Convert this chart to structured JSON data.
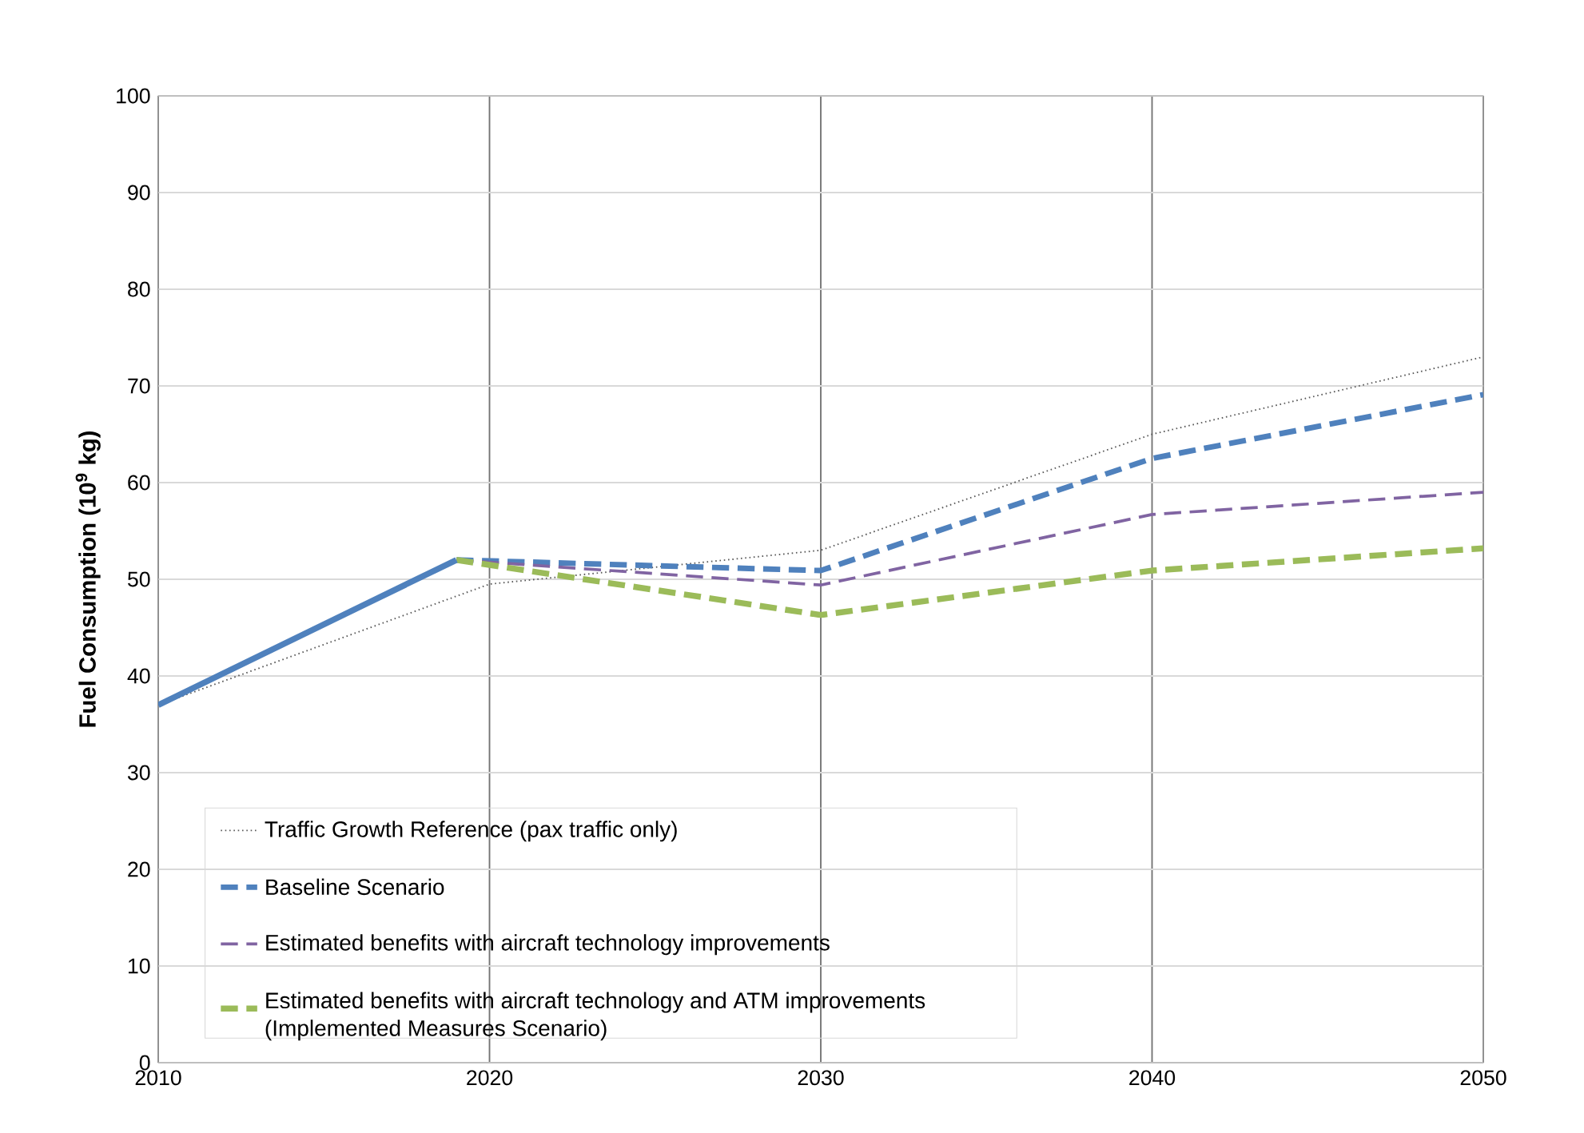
{
  "chart_data": {
    "type": "line",
    "ylabel": "Fuel Consumption (10$^{9}$ kg)",
    "xlim": [
      2010,
      2050
    ],
    "xticks": [
      2010,
      2020,
      2030,
      2040,
      2050
    ],
    "ylim": [
      0,
      100
    ],
    "yticks": [
      0,
      10,
      20,
      30,
      40,
      50,
      60,
      70,
      80,
      90,
      100
    ],
    "grid": true,
    "legend": "bottom left",
    "series": [
      {
        "name": "Traffic Growth Reference (pax traffic only)",
        "color": "#595959",
        "line_style": "dotted",
        "x": [
          2010,
          2020,
          2030,
          2040,
          2050
        ],
        "values": [
          37,
          49.5,
          53,
          65,
          73
        ]
      },
      {
        "name": "Baseline Scenario",
        "color": "#4f81bd",
        "line_style": "dashed",
        "x": [
          2019,
          2030,
          2040,
          2050
        ],
        "values": [
          52,
          50.9,
          62.5,
          69.1
        ]
      },
      {
        "name": "Estimated benefits with aircraft technology improvements",
        "color": "#8064a2",
        "line_style": "dashed",
        "x": [
          2019,
          2030,
          2040,
          2050
        ],
        "values": [
          52,
          49.4,
          56.7,
          59
        ]
      },
      {
        "name": "Estimated benefits  with aircraft technology and ATM improvements (Implemented Measures Scenario)",
        "color": "#9bbb59",
        "line_style": "dashed",
        "x": [
          2019,
          2030,
          2040,
          2050
        ],
        "values": [
          52,
          46.3,
          50.9,
          53.2
        ]
      },
      {
        "color": "#4f81bd",
        "line_style": "solid",
        "x": [
          2010,
          2019
        ],
        "values": [
          37,
          52
        ]
      }
    ]
  }
}
